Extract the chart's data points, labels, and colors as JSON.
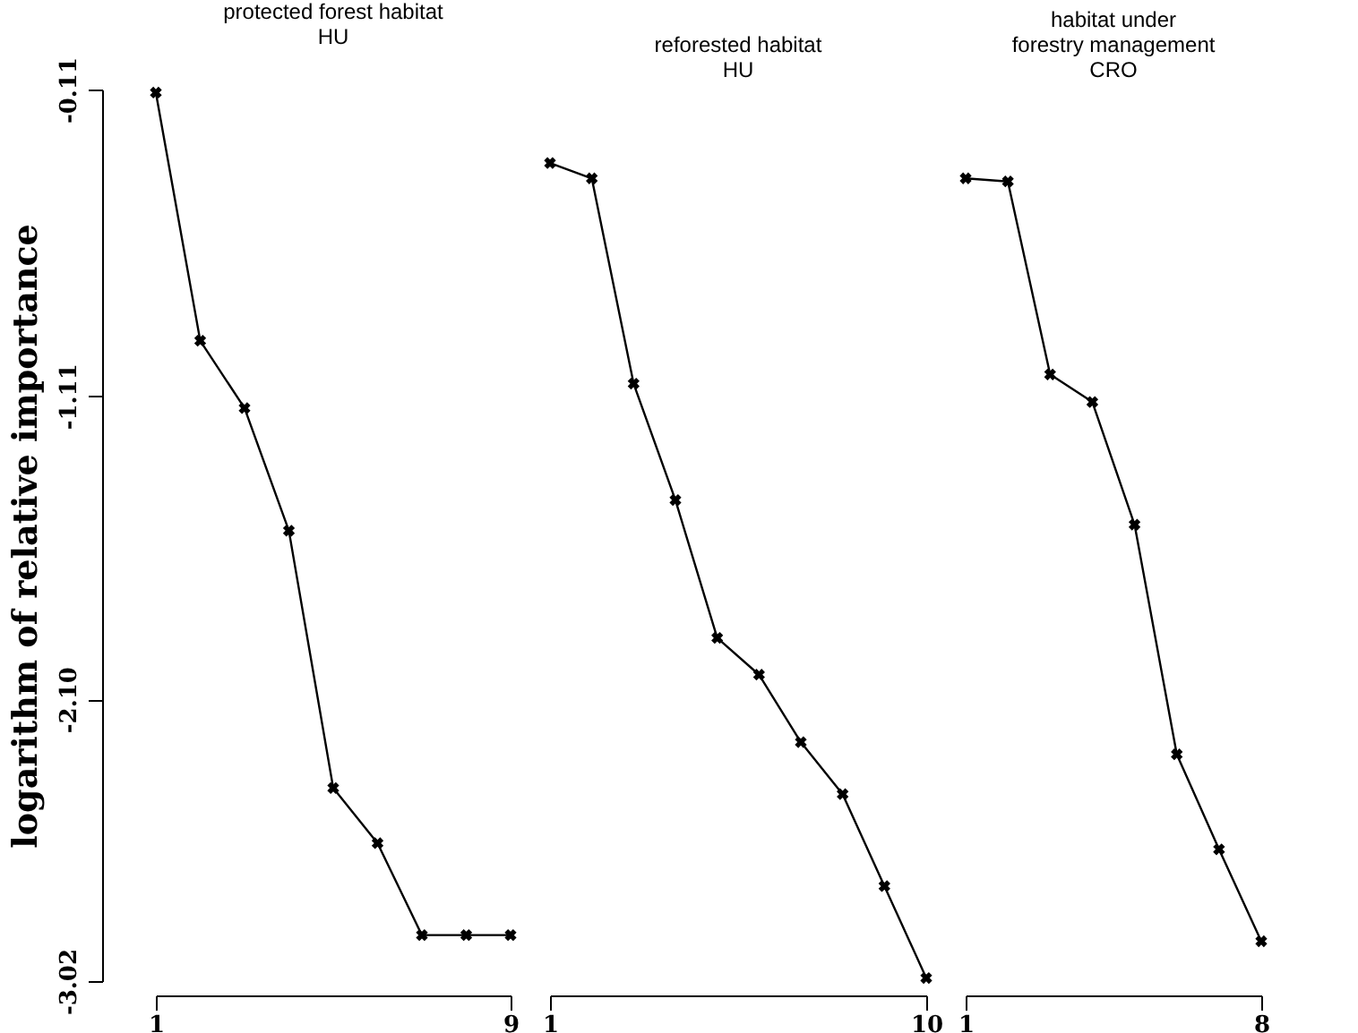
{
  "chart_data": [
    {
      "type": "line",
      "title": "protected forest habitat\nHU",
      "ylabel": "logarithm of relative importance",
      "x": [
        1,
        2,
        3,
        4,
        5,
        6,
        7,
        8,
        9
      ],
      "series": [
        {
          "color": "#000000",
          "values": [
            -0.12,
            -0.93,
            -1.15,
            -1.55,
            -2.39,
            -2.57,
            -2.87,
            -2.87,
            -2.87
          ]
        }
      ],
      "xlim": [
        1,
        9
      ],
      "xticks": [
        1,
        9
      ],
      "ylim": [
        -3.02,
        -0.11
      ],
      "yticks": [
        -0.11,
        -1.11,
        {
          "value": -2.1,
          "label": "-2.10"
        },
        -3.02
      ],
      "marker": "cross",
      "line_style": "solid"
    },
    {
      "type": "line",
      "title": "reforested habitat\nHU",
      "x": [
        1,
        2,
        3,
        4,
        5,
        6,
        7,
        8,
        9,
        10
      ],
      "series": [
        {
          "color": "#000000",
          "values": [
            -0.35,
            -0.4,
            -1.07,
            -1.45,
            -1.9,
            -2.02,
            -2.24,
            -2.41,
            -2.71,
            -3.01
          ]
        }
      ],
      "xlim": [
        1,
        10
      ],
      "xticks": [
        1,
        10
      ],
      "ylim": [
        -3.02,
        -0.11
      ],
      "tick_labels": "x",
      "marker": "cross",
      "line_style": "solid"
    },
    {
      "type": "line",
      "title": "habitat under\nforestry management\nCRO",
      "x": [
        1,
        2,
        3,
        4,
        5,
        6,
        7,
        8
      ],
      "series": [
        {
          "color": "#000000",
          "values": [
            -0.4,
            -0.41,
            -1.04,
            -1.13,
            -1.53,
            -2.28,
            -2.59,
            -2.89
          ]
        }
      ],
      "xlim": [
        1,
        8
      ],
      "xticks": [
        1,
        8
      ],
      "ylim": [
        -3.02,
        -0.11
      ],
      "tick_labels": "x",
      "marker": "cross",
      "line_style": "solid"
    }
  ]
}
